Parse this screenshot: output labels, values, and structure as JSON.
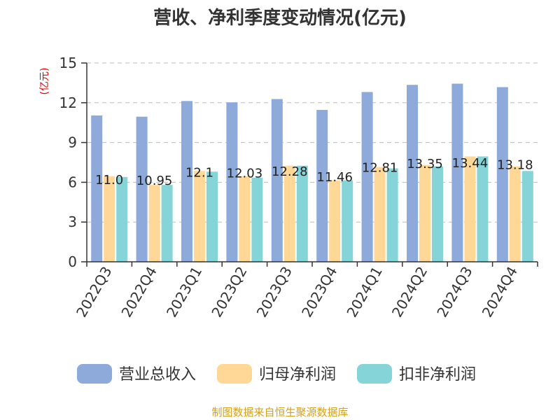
{
  "chart_data": {
    "type": "bar",
    "title": "营收、净利季度变动情况(亿元)",
    "ylabel": "(亿元)",
    "xlabel": "",
    "ylim": [
      0,
      15
    ],
    "yticks": [
      0,
      3,
      6,
      9,
      12,
      15
    ],
    "grid": true,
    "legend_position": "bottom",
    "categories": [
      "2022Q3",
      "2022Q4",
      "2023Q1",
      "2023Q2",
      "2023Q3",
      "2023Q4",
      "2024Q1",
      "2024Q2",
      "2024Q3",
      "2024Q4"
    ],
    "series": [
      {
        "name": "营业总收入",
        "color": "#8eaadb",
        "values": [
          11.04,
          10.95,
          12.13,
          12.03,
          12.28,
          11.46,
          12.81,
          13.35,
          13.44,
          13.18
        ],
        "labels": [
          "11.0",
          "10.95",
          "12.1",
          "12.03",
          "12.28",
          "11.46",
          "12.81",
          "13.35",
          "13.44",
          "13.18"
        ]
      },
      {
        "name": "归母净利润",
        "color": "#ffd898",
        "values": [
          6.45,
          5.8,
          6.85,
          6.45,
          7.25,
          6.15,
          7.15,
          7.3,
          7.95,
          7.2
        ]
      },
      {
        "name": "扣非净利润",
        "color": "#85d4d8",
        "values": [
          6.4,
          5.8,
          6.8,
          6.35,
          7.25,
          6.15,
          7.05,
          7.2,
          7.95,
          6.85
        ]
      }
    ],
    "source": "制图数据来自恒生聚源数据库",
    "colors": {
      "axis": "#333333",
      "grid": "#bbbbbb",
      "unit": "#e60000",
      "source": "#d4a017"
    }
  }
}
